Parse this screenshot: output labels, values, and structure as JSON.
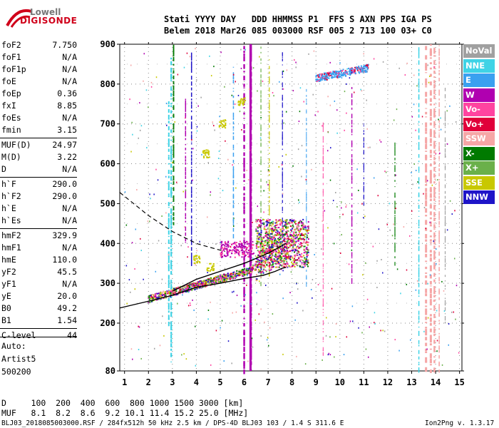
{
  "logo": {
    "line1": "Lowell",
    "line2": "DIGISONDE"
  },
  "header": {
    "row1": "Stati YYYY DAY   DDD HHMMSS P1  FFS S AXN PPS IGA PS",
    "row2": "Belem 2018 Mar26 085 003000 RSF 005 2 713 100 03+ C0"
  },
  "params": [
    {
      "label": "foF2",
      "value": "7.750"
    },
    {
      "label": "foF1",
      "value": "N/A"
    },
    {
      "label": "foF1p",
      "value": "N/A"
    },
    {
      "label": "foE",
      "value": "N/A"
    },
    {
      "label": "foEp",
      "value": "0.36"
    },
    {
      "label": "fxI",
      "value": "8.85"
    },
    {
      "label": "foEs",
      "value": "N/A"
    },
    {
      "label": "fmin",
      "value": "3.15"
    },
    {
      "label": "MUF(D)",
      "value": "24.97"
    },
    {
      "label": "M(D)",
      "value": "3.22"
    },
    {
      "label": "D",
      "value": "N/A"
    },
    {
      "label": "h`F",
      "value": "290.0"
    },
    {
      "label": "h`F2",
      "value": "290.0"
    },
    {
      "label": "h`E",
      "value": "N/A"
    },
    {
      "label": "h`Es",
      "value": "N/A"
    },
    {
      "label": "hmF2",
      "value": "329.9"
    },
    {
      "label": "hmF1",
      "value": "N/A"
    },
    {
      "label": "hmE",
      "value": "110.0"
    },
    {
      "label": "yF2",
      "value": "45.5"
    },
    {
      "label": "yF1",
      "value": "N/A"
    },
    {
      "label": "yE",
      "value": "20.0"
    },
    {
      "label": "B0",
      "value": "49.2"
    },
    {
      "label": "B1",
      "value": "1.54"
    },
    {
      "label": "C-level",
      "value": "44"
    }
  ],
  "auto": {
    "line1": "Auto:",
    "line2": "Artist5",
    "line3": "500200"
  },
  "bottom": {
    "d_row": "D     100  200  400  600  800 1000 1500 3000 [km]",
    "muf_row": "MUF   8.1  8.2  8.6  9.2 10.1 11.4 15.2 25.0 [MHz]",
    "footer_left": "BLJ03_2018085003000.RSF / 284fx512h 50 kHz 2.5 km / DPS-4D BLJ03 103 / 1.4 S 311.6 E",
    "footer_right": "Ion2Png v. 1.3.17"
  },
  "legend": [
    {
      "label": "NoVal",
      "color": "#a0a0a0"
    },
    {
      "label": "NNE",
      "color": "#3fd3e6"
    },
    {
      "label": "E",
      "color": "#3aa0f0"
    },
    {
      "label": "W",
      "color": "#b000b0"
    },
    {
      "label": "Vo-",
      "color": "#ff44a0"
    },
    {
      "label": "Vo+",
      "color": "#e0003a"
    },
    {
      "label": "SSW",
      "color": "#f6a6a6"
    },
    {
      "label": "X-",
      "color": "#007a00"
    },
    {
      "label": "X+",
      "color": "#6ab04a"
    },
    {
      "label": "SSE",
      "color": "#c8c800"
    },
    {
      "label": "NNW",
      "color": "#1e14c8"
    }
  ],
  "chart_data": {
    "type": "scatter",
    "title": "",
    "xlabel": "",
    "ylabel": "",
    "xlim": [
      0.8,
      15.1
    ],
    "ylim": [
      80,
      900
    ],
    "x_ticks": [
      "1",
      "2",
      "3",
      "4",
      "5",
      "6",
      "7",
      "8",
      "9",
      "10",
      "11",
      "12",
      "13",
      "14",
      "15"
    ],
    "y_ticks": [
      "80",
      "200",
      "300",
      "400",
      "500",
      "600",
      "700",
      "800",
      "900"
    ],
    "grid": true,
    "legend_position": "right",
    "profile_curve": {
      "frequency_mhz": [
        0.8,
        2.0,
        3.0,
        4.0,
        5.0,
        6.0,
        6.8,
        7.3,
        7.6,
        7.75
      ],
      "height_km": [
        238,
        255,
        270,
        290,
        300,
        312,
        320,
        330,
        338,
        340
      ]
    },
    "dashed_curve": {
      "frequency_mhz": [
        0.8,
        2.0,
        3.0,
        4.0,
        4.7,
        5.2
      ],
      "height_km": [
        528,
        470,
        430,
        400,
        388,
        380
      ]
    },
    "trace_curve": {
      "frequency_mhz": [
        3.0,
        4.0,
        5.0,
        6.0,
        6.8,
        7.3,
        7.75
      ],
      "height_km": [
        280,
        310,
        330,
        350,
        370,
        385,
        400
      ]
    }
  }
}
